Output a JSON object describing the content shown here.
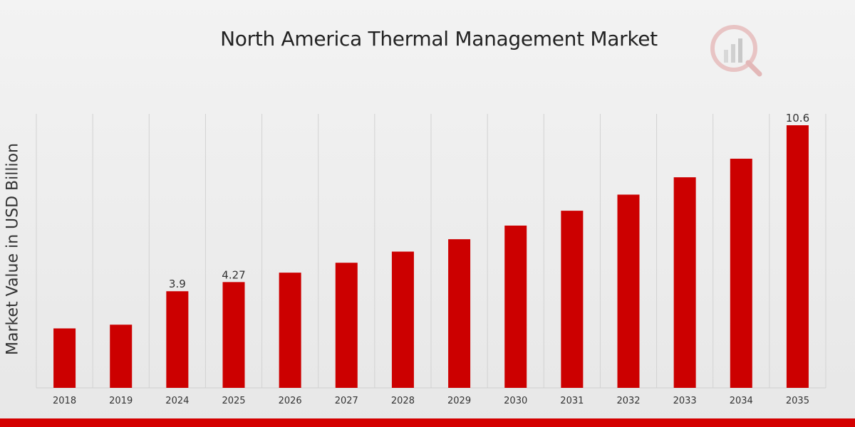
{
  "chart_data": {
    "type": "bar",
    "title": "North America Thermal Management Market",
    "xlabel": "",
    "ylabel": "Market Value in USD Billion",
    "categories": [
      "2018",
      "2019",
      "2024",
      "2025",
      "2026",
      "2027",
      "2028",
      "2029",
      "2030",
      "2031",
      "2032",
      "2033",
      "2034",
      "2035"
    ],
    "values": [
      2.4,
      2.55,
      3.9,
      4.27,
      4.65,
      5.05,
      5.5,
      6.0,
      6.55,
      7.15,
      7.8,
      8.5,
      9.25,
      10.6
    ],
    "data_labels": [
      "",
      "",
      "3.9",
      "4.27",
      "",
      "",
      "",
      "",
      "",
      "",
      "",
      "",
      "",
      "10.6"
    ],
    "ylim": [
      0,
      11.06
    ],
    "grid": "vertical",
    "legend": "none",
    "bar_color": "#cc0000"
  },
  "footer_color": "#d40000"
}
